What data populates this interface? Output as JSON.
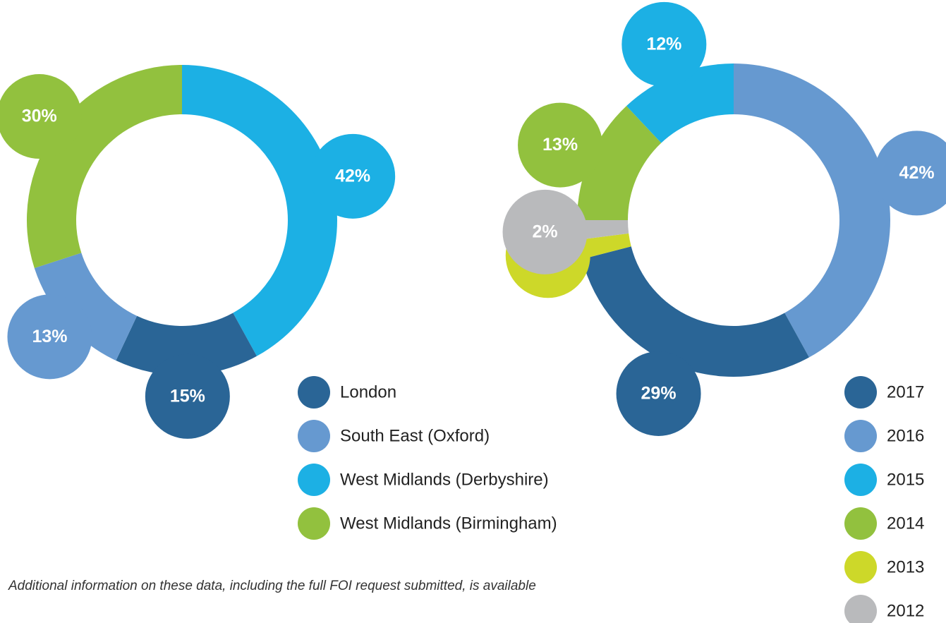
{
  "chart_data": [
    {
      "type": "donut",
      "categories": [
        "West Midlands (Derbyshire)",
        "London",
        "South East (Oxford)",
        "West Midlands (Birmingham)"
      ],
      "values": [
        42,
        15,
        13,
        30
      ],
      "value_labels": [
        "42%",
        "15%",
        "13%",
        "30%"
      ],
      "colors": [
        "#1cb0e4",
        "#2a6596",
        "#6699d0",
        "#92c13e"
      ]
    },
    {
      "type": "donut",
      "categories": [
        "2016",
        "2017",
        "2013",
        "2012",
        "2014",
        "2015"
      ],
      "values": [
        42,
        29,
        2,
        2,
        13,
        12
      ],
      "value_labels": [
        "42%",
        "29%",
        "2%",
        "2%",
        "13%",
        "12%"
      ],
      "colors": [
        "#6699d0",
        "#2a6596",
        "#cdd829",
        "#b9babc",
        "#92c13e",
        "#1cb0e4"
      ]
    }
  ],
  "note": "Additional information on these data, including the full FOI request submitted, is available"
}
